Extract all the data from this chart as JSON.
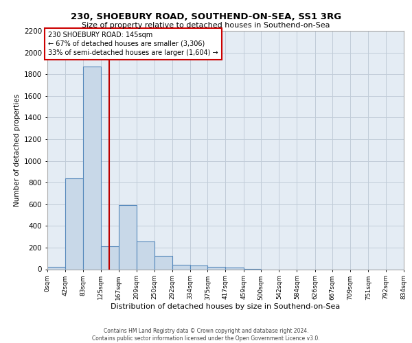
{
  "title_line1": "230, SHOEBURY ROAD, SOUTHEND-ON-SEA, SS1 3RG",
  "title_line2": "Size of property relative to detached houses in Southend-on-Sea",
  "xlabel": "Distribution of detached houses by size in Southend-on-Sea",
  "ylabel": "Number of detached properties",
  "bar_edges": [
    0,
    42,
    83,
    125,
    167,
    209,
    250,
    292,
    334,
    375,
    417,
    459,
    500,
    542,
    584,
    626,
    667,
    709,
    751,
    792,
    834
  ],
  "bar_heights": [
    25,
    840,
    1870,
    210,
    590,
    255,
    125,
    40,
    35,
    25,
    15,
    5,
    0,
    0,
    0,
    0,
    0,
    0,
    0,
    0
  ],
  "bar_color": "#c8d8e8",
  "bar_edgecolor": "#5588bb",
  "grid_color": "#c0ccd8",
  "background_color": "#e4ecf4",
  "vline_x": 145,
  "vline_color": "#bb0000",
  "annotation_text": "230 SHOEBURY ROAD: 145sqm\n← 67% of detached houses are smaller (3,306)\n33% of semi-detached houses are larger (1,604) →",
  "annotation_box_color": "#ffffff",
  "annotation_border_color": "#cc0000",
  "ylim": [
    0,
    2200
  ],
  "yticks": [
    0,
    200,
    400,
    600,
    800,
    1000,
    1200,
    1400,
    1600,
    1800,
    2000,
    2200
  ],
  "footer_line1": "Contains HM Land Registry data © Crown copyright and database right 2024.",
  "footer_line2": "Contains public sector information licensed under the Open Government Licence v3.0.",
  "tick_labels": [
    "0sqm",
    "42sqm",
    "83sqm",
    "125sqm",
    "167sqm",
    "209sqm",
    "250sqm",
    "292sqm",
    "334sqm",
    "375sqm",
    "417sqm",
    "459sqm",
    "500sqm",
    "542sqm",
    "584sqm",
    "626sqm",
    "667sqm",
    "709sqm",
    "751sqm",
    "792sqm",
    "834sqm"
  ]
}
